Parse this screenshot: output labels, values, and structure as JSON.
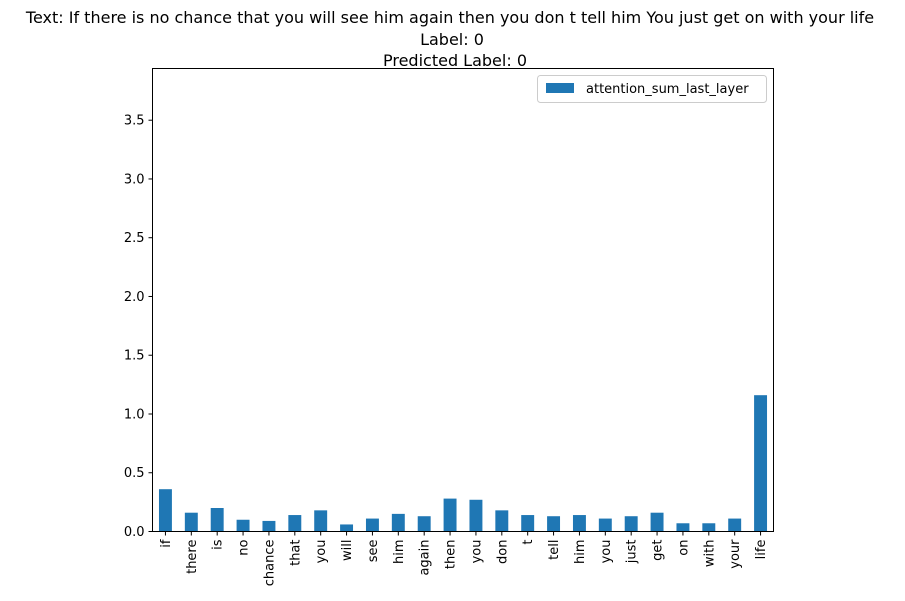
{
  "chart_data": {
    "type": "bar",
    "title_lines": [
      "Text: If there is no chance that you will see him again then you don t tell him You just get on with your life",
      "Label: 0",
      "Predicted Label: 0"
    ],
    "xlabel": "",
    "ylabel": "",
    "categories": [
      "if",
      "there",
      "is",
      "no",
      "chance",
      "that",
      "you",
      "will",
      "see",
      "him",
      "again",
      "then",
      "you",
      "don",
      "t",
      "tell",
      "him",
      "you",
      "just",
      "get",
      "on",
      "with",
      "your",
      "life"
    ],
    "series": [
      {
        "name": "attention_sum_last_layer",
        "color": "#1f77b4",
        "values": [
          0.36,
          0.16,
          0.2,
          0.1,
          0.09,
          0.14,
          0.18,
          0.06,
          0.11,
          0.15,
          0.13,
          0.28,
          0.27,
          0.18,
          0.14,
          0.13,
          0.14,
          0.11,
          0.13,
          0.16,
          0.07,
          0.07,
          0.11,
          1.16
        ]
      }
    ],
    "ylim": [
      0,
      3.94
    ],
    "yticks": [
      "0.0",
      "0.5",
      "1.0",
      "1.5",
      "2.0",
      "2.5",
      "3.0",
      "3.5"
    ],
    "ytick_values": [
      0,
      0.5,
      1.0,
      1.5,
      2.0,
      2.5,
      3.0,
      3.5
    ],
    "grid": false,
    "legend_position": "upper right"
  }
}
